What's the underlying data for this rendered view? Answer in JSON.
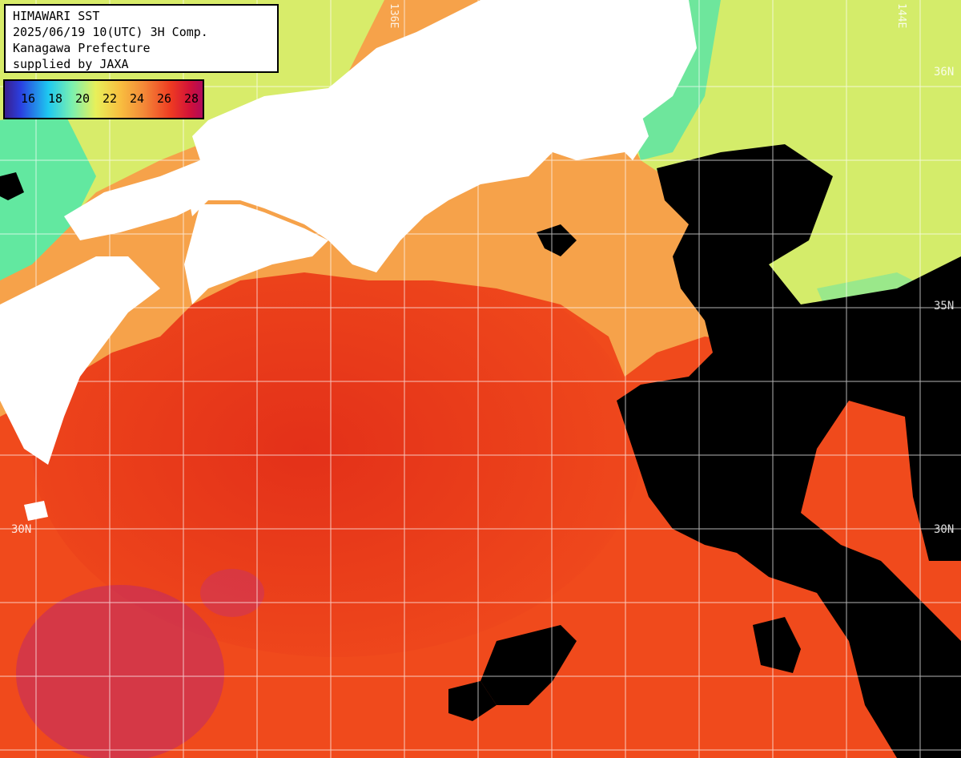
{
  "title_box": {
    "line1": "HIMAWARI SST",
    "line2": "2025/06/19 10(UTC) 3H Comp.",
    "line3": "Kanagawa Prefecture",
    "line4": "supplied by JAXA"
  },
  "legend": {
    "ticks": [
      "16",
      "18",
      "20",
      "22",
      "24",
      "26",
      "28"
    ]
  },
  "grid_labels": {
    "lat_35_right": "35N",
    "lat_30_left": "30N",
    "lat_30_right": "30N",
    "lat_upper_right": "36N",
    "lon_left": "136E",
    "lon_right": "144E"
  },
  "colors": {
    "land": "#ffffff",
    "cloud": "#000000",
    "sst_warm": "#f04a1c",
    "sst_hot": "#d8201c",
    "sst_mild": "#f6a24a",
    "sst_cool": "#d0ec6a",
    "sst_cold": "#58e8a0",
    "sst_max": "#b0209a",
    "grid": "#ffffff"
  }
}
